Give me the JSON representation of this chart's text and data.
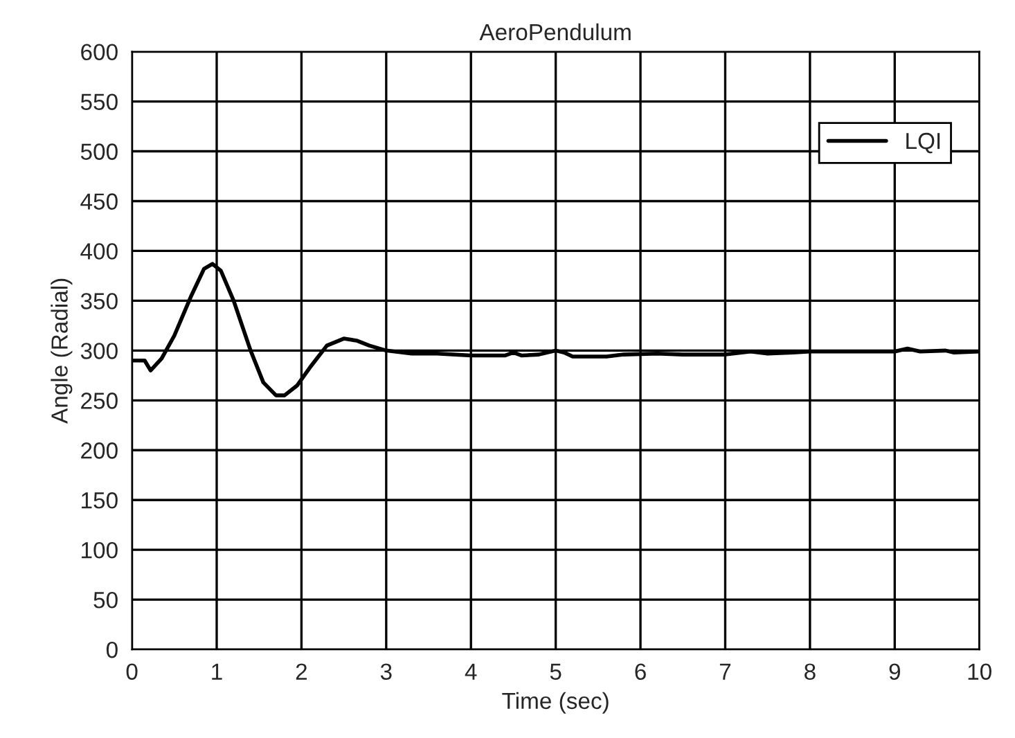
{
  "chart_data": {
    "type": "line",
    "title": "AeroPendulum",
    "xlabel": "Time (sec)",
    "ylabel": "Angle (Radial)",
    "xlim": [
      0,
      10
    ],
    "xticks": [
      0,
      1,
      2,
      3,
      4,
      5,
      6,
      7,
      8,
      9,
      10
    ],
    "ylim": [
      0,
      600
    ],
    "yticks": [
      0,
      50,
      100,
      150,
      200,
      250,
      300,
      350,
      400,
      450,
      500,
      550,
      600
    ],
    "grid": true,
    "legend": "top right",
    "marker": "none",
    "line_style": "solid",
    "series": [
      {
        "name": "LQI",
        "color": "#000000",
        "x": [
          0,
          0.15,
          0.22,
          0.35,
          0.5,
          0.7,
          0.85,
          0.95,
          1.05,
          1.2,
          1.4,
          1.55,
          1.7,
          1.8,
          1.95,
          2.1,
          2.3,
          2.5,
          2.65,
          2.8,
          3.0,
          3.3,
          3.6,
          4.0,
          4.4,
          4.5,
          4.6,
          4.8,
          5.0,
          5.1,
          5.2,
          5.6,
          5.8,
          6.2,
          6.5,
          7.0,
          7.3,
          7.5,
          7.8,
          8.0,
          8.5,
          9.0,
          9.15,
          9.3,
          9.6,
          9.7,
          10
        ],
        "values": [
          290,
          290,
          280,
          292,
          315,
          355,
          382,
          387,
          380,
          350,
          300,
          268,
          255,
          255,
          265,
          283,
          305,
          312,
          310,
          305,
          300,
          297,
          297,
          295,
          295,
          298,
          295,
          296,
          300,
          298,
          294,
          294,
          296,
          297,
          296,
          296,
          299,
          297,
          298,
          299,
          299,
          299,
          302,
          299,
          300,
          298,
          299
        ]
      }
    ]
  }
}
